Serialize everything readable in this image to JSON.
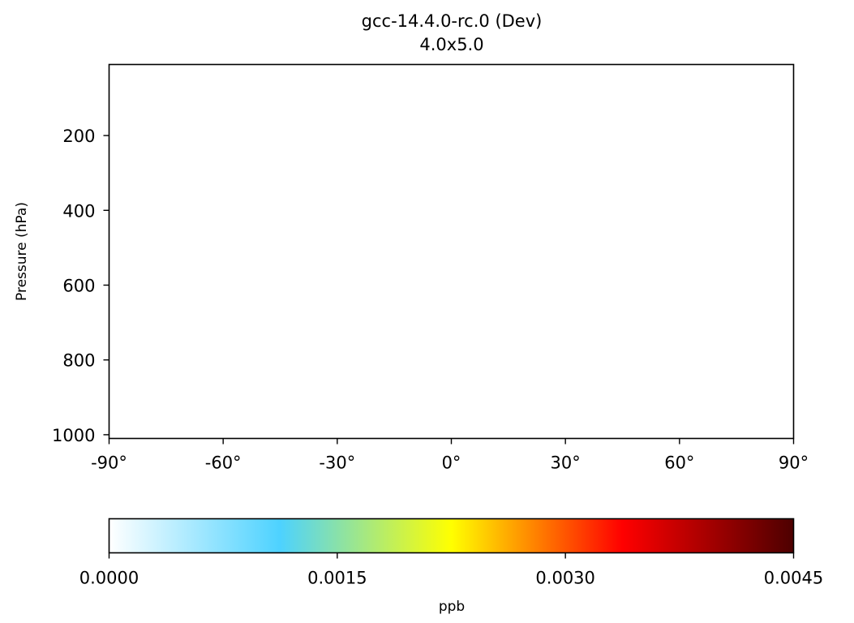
{
  "chart_data": {
    "type": "heatmap",
    "title": "gcc-14.4.0-rc.0 (Dev)",
    "subtitle": "4.0x5.0",
    "xlabel": "",
    "ylabel": "Pressure (hPa)",
    "xlim": [
      -90,
      90
    ],
    "ylim": [
      1010,
      10
    ],
    "y_inverted": true,
    "x_ticks": [
      -90,
      -60,
      -30,
      0,
      30,
      60,
      90
    ],
    "x_tick_labels": [
      "-90°",
      "-60°",
      "-30°",
      "0°",
      "30°",
      "60°",
      "90°"
    ],
    "y_ticks": [
      200,
      400,
      600,
      800,
      1000
    ],
    "y_tick_labels": [
      "200",
      "400",
      "600",
      "800",
      "1000"
    ],
    "values": [],
    "grid": false,
    "colorbar": {
      "orientation": "horizontal",
      "label": "ppb",
      "range": [
        0,
        0.0045
      ],
      "ticks": [
        0,
        0.0015,
        0.003,
        0.0045
      ],
      "tick_labels": [
        "0.0000",
        "0.0015",
        "0.0030",
        "0.0045"
      ],
      "colormap_stops": [
        {
          "pos": 0.0,
          "color": "#ffffff"
        },
        {
          "pos": 0.25,
          "color": "#4dd2ff"
        },
        {
          "pos": 0.5,
          "color": "#ffff00"
        },
        {
          "pos": 0.75,
          "color": "#ff0000"
        },
        {
          "pos": 1.0,
          "color": "#4d0000"
        }
      ]
    }
  }
}
